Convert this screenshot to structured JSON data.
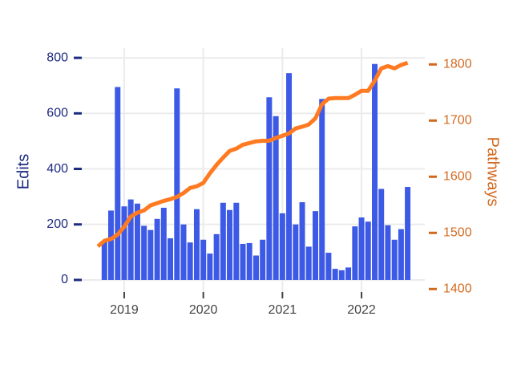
{
  "chart_data": {
    "type": "bar-line",
    "ylabel": "Edits",
    "y2label": "Pathways",
    "xlim": [
      2018.443,
      2022.8
    ],
    "xticks": [
      2019,
      2020,
      2021,
      2022
    ],
    "ylim": [
      -55,
      835
    ],
    "yticks": [
      0,
      200,
      400,
      600,
      800
    ],
    "y2lim": [
      1389,
      1829
    ],
    "y2ticks": [
      1400,
      1500,
      1600,
      1700,
      1800
    ],
    "grid": true,
    "series": [
      {
        "type": "bar",
        "color": "#3d5ae6",
        "x": [
          2018.75,
          2018.833,
          2018.917,
          2019.0,
          2019.083,
          2019.167,
          2019.25,
          2019.333,
          2019.417,
          2019.5,
          2019.583,
          2019.667,
          2019.75,
          2019.833,
          2019.917,
          2020.0,
          2020.083,
          2020.167,
          2020.25,
          2020.333,
          2020.417,
          2020.5,
          2020.583,
          2020.667,
          2020.75,
          2020.833,
          2020.917,
          2021.0,
          2021.083,
          2021.167,
          2021.25,
          2021.333,
          2021.417,
          2021.5,
          2021.583,
          2021.667,
          2021.75,
          2021.833,
          2021.917,
          2022.0,
          2022.083,
          2022.167,
          2022.25,
          2022.333,
          2022.417,
          2022.5,
          2022.583
        ],
        "values": [
          140,
          250,
          695,
          265,
          290,
          275,
          195,
          180,
          220,
          260,
          150,
          690,
          200,
          135,
          255,
          145,
          95,
          165,
          278,
          252,
          278,
          130,
          133,
          88,
          145,
          658,
          590,
          240,
          745,
          200,
          280,
          120,
          248,
          652,
          98,
          40,
          35,
          45,
          193,
          225,
          210,
          778,
          328,
          197,
          145,
          183,
          335
        ]
      },
      {
        "type": "line",
        "axis": "y2",
        "color": "#ff7a21",
        "x": [
          2018.667,
          2018.75,
          2018.833,
          2018.917,
          2019.0,
          2019.083,
          2019.167,
          2019.25,
          2019.333,
          2019.417,
          2019.5,
          2019.583,
          2019.667,
          2019.75,
          2019.833,
          2019.917,
          2020.0,
          2020.083,
          2020.167,
          2020.25,
          2020.333,
          2020.417,
          2020.5,
          2020.583,
          2020.667,
          2020.75,
          2020.833,
          2020.917,
          2021.0,
          2021.083,
          2021.167,
          2021.25,
          2021.333,
          2021.417,
          2021.5,
          2021.583,
          2021.667,
          2021.75,
          2021.833,
          2021.917,
          2022.0,
          2022.083,
          2022.167,
          2022.25,
          2022.333,
          2022.417,
          2022.5,
          2022.583
        ],
        "values": [
          1476,
          1486,
          1489,
          1497,
          1511,
          1529,
          1536,
          1540,
          1549,
          1553,
          1557,
          1560,
          1564,
          1571,
          1580,
          1583,
          1589,
          1606,
          1621,
          1634,
          1646,
          1650,
          1657,
          1660,
          1663,
          1664,
          1664,
          1669,
          1673,
          1677,
          1686,
          1689,
          1693,
          1704,
          1729,
          1739,
          1740,
          1740,
          1740,
          1746,
          1753,
          1753,
          1771,
          1793,
          1797,
          1793,
          1799,
          1803
        ]
      }
    ]
  }
}
